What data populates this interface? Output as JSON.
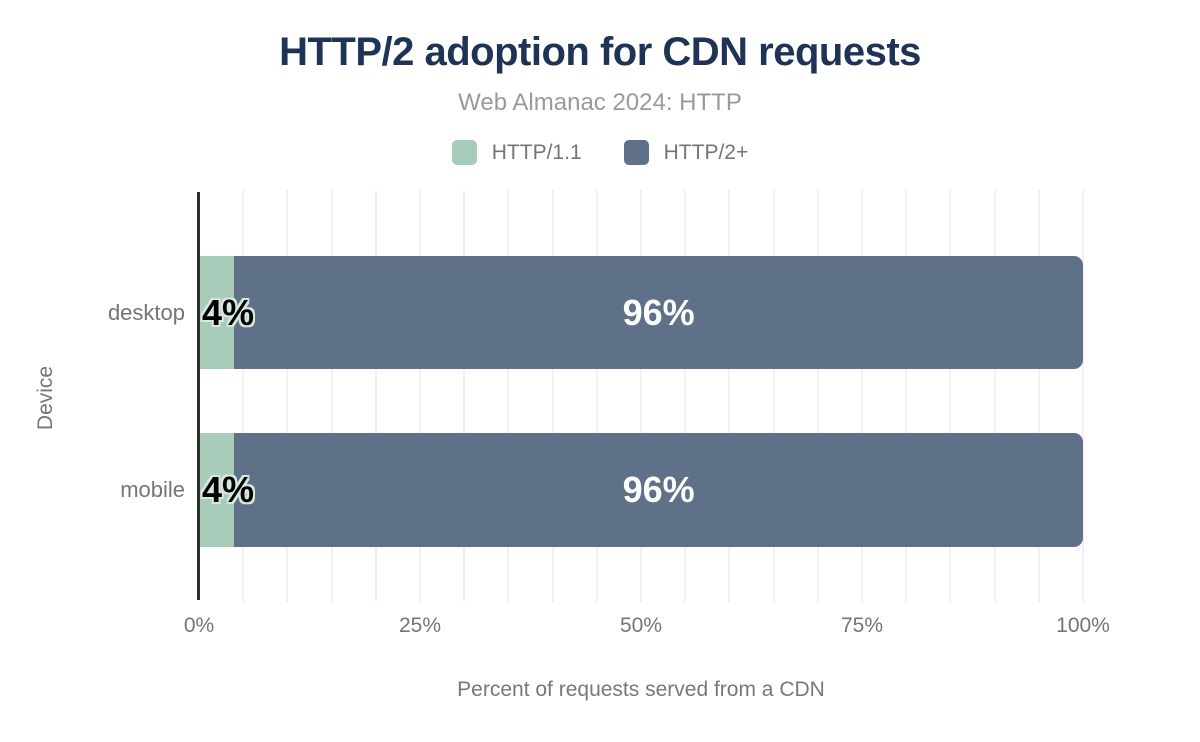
{
  "header": {
    "title": "HTTP/2 adoption for CDN requests",
    "subtitle": "Web Almanac 2024: HTTP"
  },
  "colors": {
    "title_text": "#1e3356",
    "subtitle_text": "#9a9a9a",
    "axis_text": "#757575",
    "gridline": "#f1f1f1",
    "axis_line": "#2d2d2d",
    "series_http11": "#a9cbb9",
    "series_http2plus": "#5f7189",
    "data_label_on_light": "#000000",
    "data_label_on_dark": "#ffffff",
    "data_label_halo": "#d6e7dc"
  },
  "chart_data": {
    "type": "bar",
    "orientation": "horizontal",
    "stacked": true,
    "title": "HTTP/2 adoption for CDN requests",
    "subtitle": "Web Almanac 2024: HTTP",
    "xlabel": "Percent of requests served from a CDN",
    "ylabel": "Device",
    "categories": [
      "desktop",
      "mobile"
    ],
    "series": [
      {
        "name": "HTTP/1.1",
        "color": "#a9cbb9",
        "values": [
          4,
          4
        ],
        "labels": [
          "4%",
          "4%"
        ]
      },
      {
        "name": "HTTP/2+",
        "color": "#5f7189",
        "values": [
          96,
          96
        ],
        "labels": [
          "96%",
          "96%"
        ]
      }
    ],
    "xlim": [
      0,
      100
    ],
    "xticks": [
      {
        "value": 0,
        "label": "0%"
      },
      {
        "value": 25,
        "label": "25%"
      },
      {
        "value": 50,
        "label": "50%"
      },
      {
        "value": 75,
        "label": "75%"
      },
      {
        "value": 100,
        "label": "100%"
      }
    ],
    "grid": true,
    "grid_step": 5,
    "legend_position": "top"
  }
}
